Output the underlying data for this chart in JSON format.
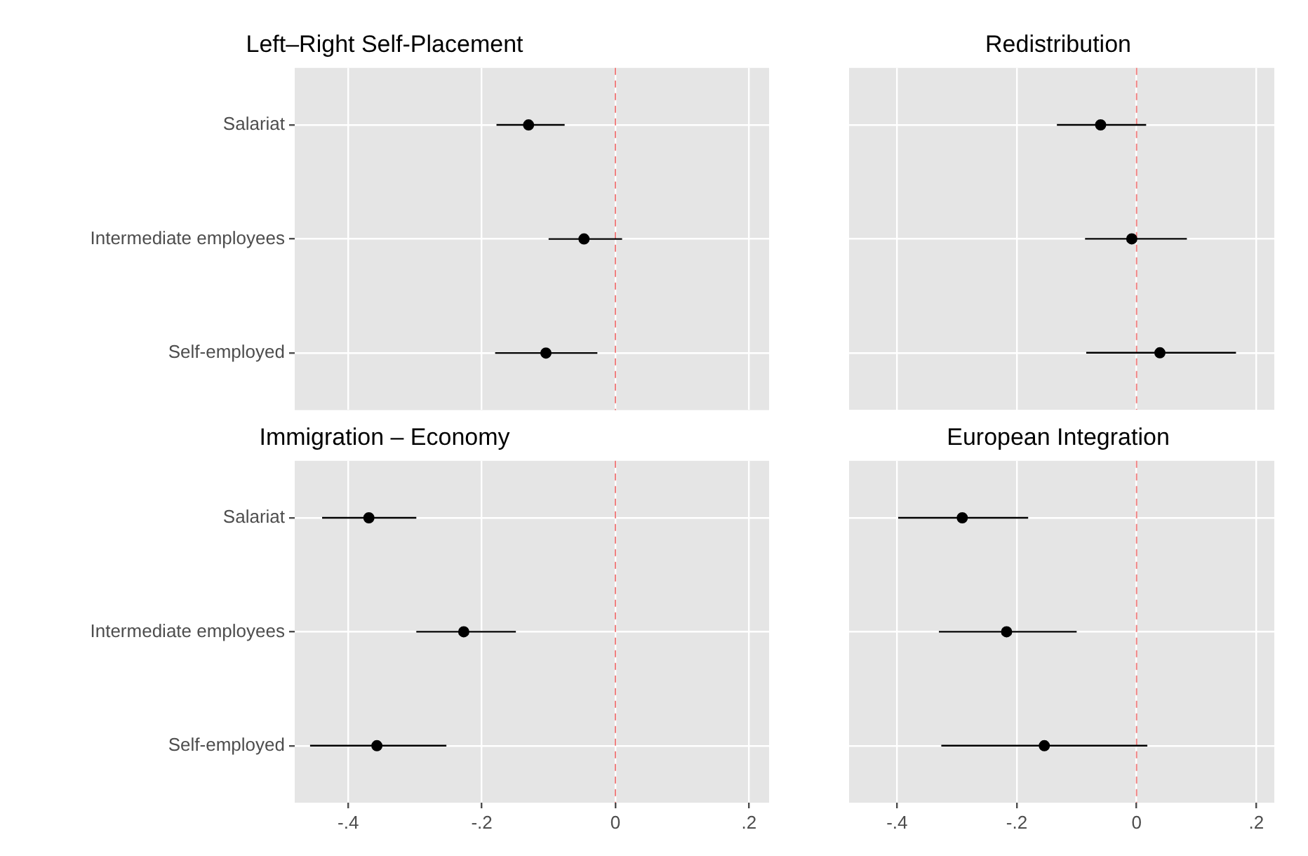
{
  "chart_data": [
    {
      "type": "scatter",
      "title": "Left–Right Self-Placement",
      "orientation": "horizontal",
      "categories": [
        "Salariat",
        "Intermediate employees",
        "Self-employed"
      ],
      "color": "#000000",
      "marker": "circle",
      "values": [
        -0.13,
        -0.047,
        -0.104
      ],
      "errors": [
        [
          -0.178,
          -0.076
        ],
        [
          -0.1,
          0.01
        ],
        [
          -0.18,
          -0.027
        ]
      ],
      "xlim": [
        -0.48,
        0.23
      ],
      "xticks": [
        {
          "value": -0.4,
          "label": null
        },
        {
          "value": -0.2,
          "label": null
        },
        {
          "value": 0,
          "label": null
        },
        {
          "value": 0.2,
          "label": null
        }
      ],
      "grid": true,
      "tick_labels": "y",
      "ref_lines": [
        {
          "axis": "x",
          "value": 0,
          "color": "#f08080",
          "line_style": "dashed"
        }
      ]
    },
    {
      "type": "scatter",
      "title": "Redistribution",
      "orientation": "horizontal",
      "categories": [
        null,
        null,
        null
      ],
      "color": "#000000",
      "marker": "circle",
      "values": [
        -0.06,
        -0.008,
        0.039
      ],
      "errors": [
        [
          -0.133,
          0.016
        ],
        [
          -0.086,
          0.084
        ],
        [
          -0.084,
          0.166
        ]
      ],
      "xlim": [
        -0.48,
        0.23
      ],
      "xticks": [
        {
          "value": -0.4,
          "label": null
        },
        {
          "value": -0.2,
          "label": null
        },
        {
          "value": 0,
          "label": null
        },
        {
          "value": 0.2,
          "label": null
        }
      ],
      "grid": true,
      "tick_labels": false,
      "ref_lines": [
        {
          "axis": "x",
          "value": 0,
          "color": "#f08080",
          "line_style": "dashed"
        }
      ]
    },
    {
      "type": "scatter",
      "title": "Immigration – Economy",
      "orientation": "horizontal",
      "categories": [
        "Salariat",
        "Intermediate employees",
        "Self-employed"
      ],
      "color": "#000000",
      "marker": "circle",
      "values": [
        -0.369,
        -0.227,
        -0.357
      ],
      "errors": [
        [
          -0.439,
          -0.298
        ],
        [
          -0.298,
          -0.149
        ],
        [
          -0.457,
          -0.253
        ]
      ],
      "xlim": [
        -0.48,
        0.23
      ],
      "xticks": [
        {
          "value": -0.4,
          "label": "-.4"
        },
        {
          "value": -0.2,
          "label": "-.2"
        },
        0,
        {
          "value": 0.2,
          "label": ".2"
        }
      ],
      "grid": true,
      "ref_lines": [
        {
          "axis": "x",
          "value": 0,
          "color": "#f08080",
          "line_style": "dashed"
        }
      ]
    },
    {
      "type": "scatter",
      "title": "European Integration",
      "orientation": "horizontal",
      "categories": [
        null,
        null,
        null
      ],
      "color": "#000000",
      "marker": "circle",
      "values": [
        -0.291,
        -0.217,
        -0.154
      ],
      "errors": [
        [
          -0.398,
          -0.181
        ],
        [
          -0.33,
          -0.1
        ],
        [
          -0.326,
          0.018
        ]
      ],
      "xlim": [
        -0.48,
        0.23
      ],
      "xticks": [
        {
          "value": -0.4,
          "label": "-.4"
        },
        {
          "value": -0.2,
          "label": "-.2"
        },
        0,
        {
          "value": 0.2,
          "label": ".2"
        }
      ],
      "grid": true,
      "tick_labels": "x",
      "ref_lines": [
        {
          "axis": "x",
          "value": 0,
          "color": "#f08080",
          "line_style": "dashed"
        }
      ]
    }
  ]
}
